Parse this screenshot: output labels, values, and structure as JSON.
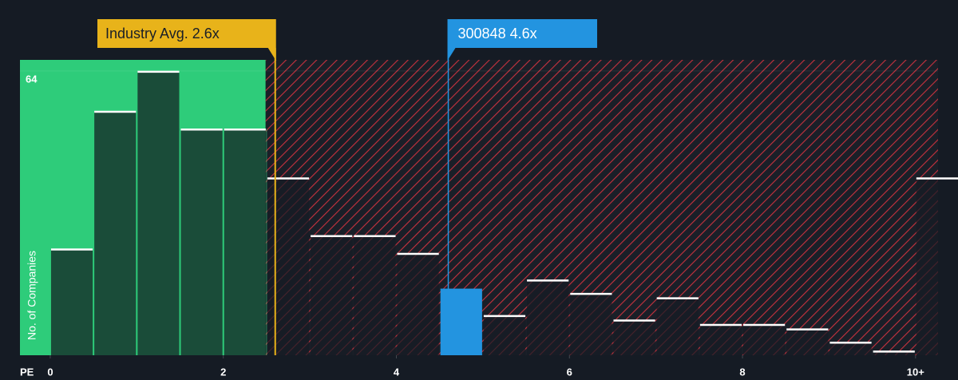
{
  "chart_data": {
    "type": "histogram",
    "y_label": "No. of Companies",
    "x_label": "PE",
    "bins": [
      0,
      0.5,
      1,
      1.5,
      2,
      2.5,
      3,
      3.5,
      4,
      4.5,
      5,
      5.5,
      6,
      6.5,
      7,
      7.5,
      8,
      8.5,
      9,
      9.5,
      10,
      10.5
    ],
    "values": [
      24,
      55,
      64,
      51,
      51,
      40,
      27,
      27,
      23,
      15,
      9,
      17,
      14,
      8,
      13,
      7,
      7,
      6,
      3,
      1,
      40
    ],
    "xlim": [
      -0.35,
      10.26
    ],
    "ylim": [
      0,
      66.5
    ],
    "xticks": [
      0,
      2,
      4,
      6,
      8,
      {
        "value": 10,
        "label": "10+"
      }
    ],
    "yticks": [
      64
    ],
    "industry_avg": {
      "label": "Industry Avg. 2.6x",
      "value": 2.6,
      "color": "#e8b31a"
    },
    "company": {
      "label": "300848 4.6x",
      "value": 4.6,
      "color": "#2394e0"
    },
    "below_color": "#2ecc7a",
    "above_color": "#d6303c"
  }
}
